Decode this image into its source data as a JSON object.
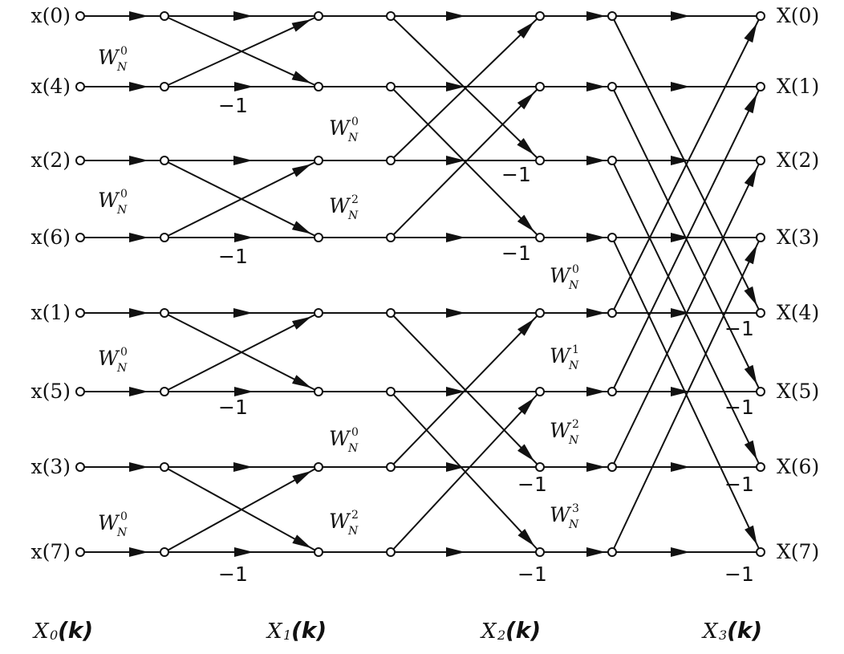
{
  "inputs": [
    "x(0)",
    "x(4)",
    "x(2)",
    "x(6)",
    "x(1)",
    "x(5)",
    "x(3)",
    "x(7)"
  ],
  "outputs": [
    "X(0)",
    "X(1)",
    "X(2)",
    "X(3)",
    "X(4)",
    "X(5)",
    "X(6)",
    "X(7)"
  ],
  "twiddle": {
    "base": "W",
    "sub": "N"
  },
  "twiddle_factors": {
    "stage1": [
      "0",
      "0",
      "0",
      "0"
    ],
    "stage2": [
      "0",
      "2",
      "0",
      "2"
    ],
    "stage3": [
      "0",
      "1",
      "2",
      "3"
    ]
  },
  "negative_multiplier": "−1",
  "stages": [
    {
      "main": "X",
      "sub": "0",
      "arg": "(k)"
    },
    {
      "main": "X",
      "sub": "1",
      "arg": "(k)"
    },
    {
      "main": "X",
      "sub": "2",
      "arg": "(k)"
    },
    {
      "main": "X",
      "sub": "3",
      "arg": "(k)"
    }
  ]
}
